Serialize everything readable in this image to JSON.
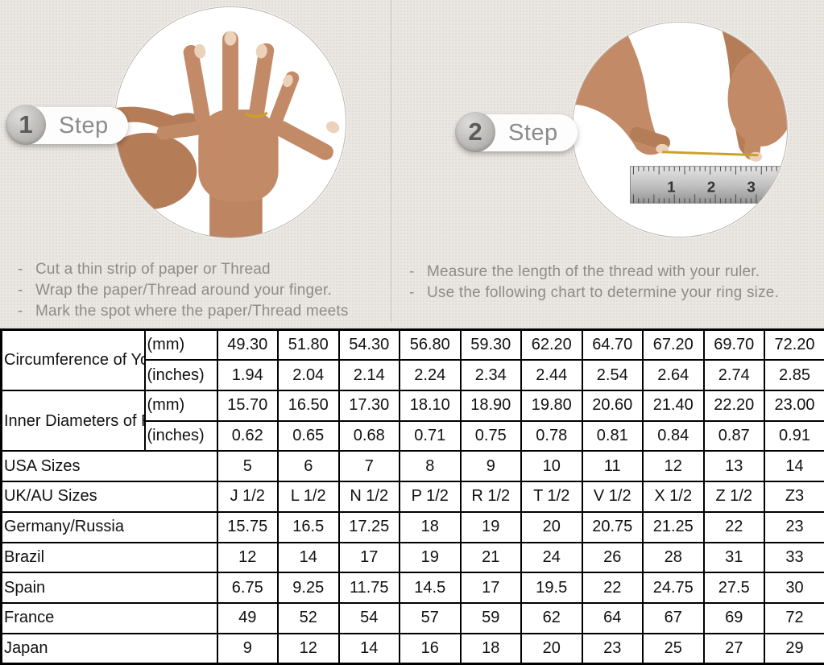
{
  "background_color": "#eae7e2",
  "steps": [
    {
      "number": "1",
      "label": "Step",
      "photo": "hand-with-thread-wrapped-around-ring-finger",
      "instructions": [
        "Cut a thin strip of paper or Thread",
        "Wrap the paper/Thread around your finger.",
        "Mark the spot where the paper/Thread meets"
      ]
    },
    {
      "number": "2",
      "label": "Step",
      "photo": "hands-measuring-thread-length-with-ruler",
      "instructions": [
        "Measure the length of the thread with your ruler.",
        "Use the following chart to determine your ring size."
      ],
      "ruler_numbers": [
        "1",
        "2",
        "3"
      ]
    }
  ],
  "size_chart": {
    "merged_groups": [
      {
        "label": "Circumference of Your Finger",
        "sub_rows": [
          {
            "unit": "(mm)",
            "shaded": true,
            "values": [
              "49.30",
              "51.80",
              "54.30",
              "56.80",
              "59.30",
              "62.20",
              "64.70",
              "67.20",
              "69.70",
              "72.20"
            ]
          },
          {
            "unit": "(inches)",
            "shaded": false,
            "values": [
              "1.94",
              "2.04",
              "2.14",
              "2.24",
              "2.34",
              "2.44",
              "2.54",
              "2.64",
              "2.74",
              "2.85"
            ]
          }
        ]
      },
      {
        "label": "Inner Diameters of Rings",
        "sub_rows": [
          {
            "unit": "(mm)",
            "shaded": false,
            "values": [
              "15.70",
              "16.50",
              "17.30",
              "18.10",
              "18.90",
              "19.80",
              "20.60",
              "21.40",
              "22.20",
              "23.00"
            ]
          },
          {
            "unit": "(inches)",
            "shaded": false,
            "values": [
              "0.62",
              "0.65",
              "0.68",
              "0.71",
              "0.75",
              "0.78",
              "0.81",
              "0.84",
              "0.87",
              "0.91"
            ]
          }
        ]
      }
    ],
    "country_rows": [
      {
        "label": "USA Sizes",
        "shaded": true,
        "values": [
          "5",
          "6",
          "7",
          "8",
          "9",
          "10",
          "11",
          "12",
          "13",
          "14"
        ]
      },
      {
        "label": "UK/AU Sizes",
        "shaded": false,
        "values": [
          "J 1/2",
          "L 1/2",
          "N 1/2",
          "P 1/2",
          "R 1/2",
          "T 1/2",
          "V 1/2",
          "X 1/2",
          "Z 1/2",
          "Z3"
        ]
      },
      {
        "label": "Germany/Russia",
        "shaded": false,
        "values": [
          "15.75",
          "16.5",
          "17.25",
          "18",
          "19",
          "20",
          "20.75",
          "21.25",
          "22",
          "23"
        ]
      },
      {
        "label": "Brazil",
        "shaded": false,
        "values": [
          "12",
          "14",
          "17",
          "19",
          "21",
          "24",
          "26",
          "28",
          "31",
          "33"
        ]
      },
      {
        "label": "Spain",
        "shaded": false,
        "values": [
          "6.75",
          "9.25",
          "11.75",
          "14.5",
          "17",
          "19.5",
          "22",
          "24.75",
          "27.5",
          "30"
        ]
      },
      {
        "label": "France",
        "shaded": false,
        "values": [
          "49",
          "52",
          "54",
          "57",
          "59",
          "62",
          "64",
          "67",
          "69",
          "72"
        ]
      },
      {
        "label": "Japan",
        "shaded": false,
        "values": [
          "9",
          "12",
          "14",
          "16",
          "18",
          "20",
          "23",
          "25",
          "27",
          "29"
        ]
      }
    ]
  }
}
